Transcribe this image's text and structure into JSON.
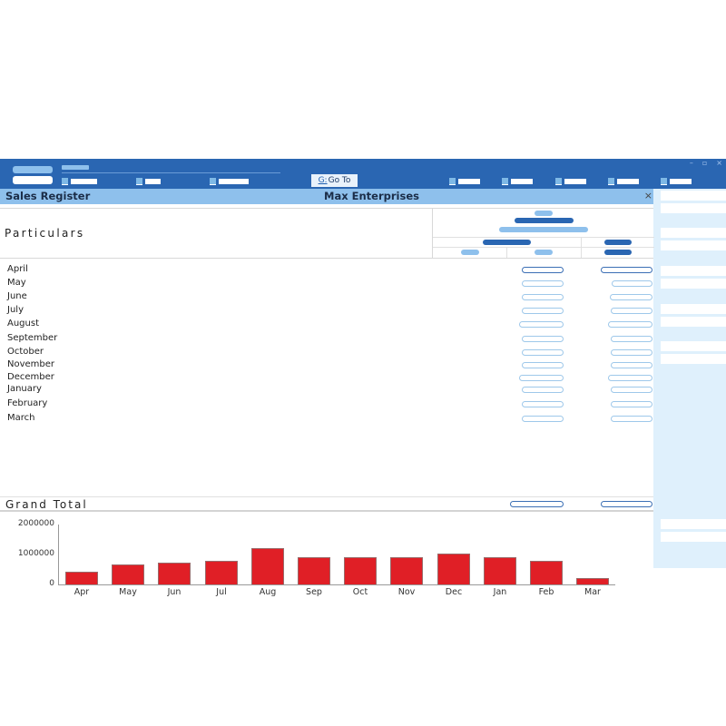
{
  "window": {
    "controls": [
      "–",
      "▫",
      "×"
    ],
    "goto_key": "G:",
    "goto_label": "Go To"
  },
  "titlebar": {
    "report_title": "Sales Register",
    "company": "Max Enterprises",
    "close": "×"
  },
  "report": {
    "particulars_label": "Particulars",
    "rows": [
      {
        "label": "April"
      },
      {
        "label": "May"
      },
      {
        "label": "June"
      },
      {
        "label": "July"
      },
      {
        "label": "August"
      },
      {
        "label": "September"
      },
      {
        "label": "October"
      },
      {
        "label": "November"
      },
      {
        "label": "December"
      },
      {
        "label": "January"
      },
      {
        "label": "February"
      },
      {
        "label": "March"
      }
    ],
    "grand_total_label": "Grand Total"
  },
  "chart_data": {
    "type": "bar",
    "categories": [
      "Apr",
      "May",
      "Jun",
      "Jul",
      "Aug",
      "Sep",
      "Oct",
      "Nov",
      "Dec",
      "Jan",
      "Feb",
      "Mar"
    ],
    "values": [
      420000,
      670000,
      730000,
      790000,
      1210000,
      910000,
      910000,
      910000,
      1030000,
      910000,
      800000,
      200000
    ],
    "title": "",
    "xlabel": "",
    "ylabel": "",
    "yticks": [
      "0",
      "1000000",
      "2000000"
    ],
    "ylim": [
      0,
      2000000
    ],
    "bar_color": "#e01f26",
    "grid": false
  },
  "colors": {
    "topbar": "#2a66b2",
    "titlebar": "#8ec0ec",
    "rightpanel": "#dff0fc",
    "bar": "#e01f26"
  }
}
